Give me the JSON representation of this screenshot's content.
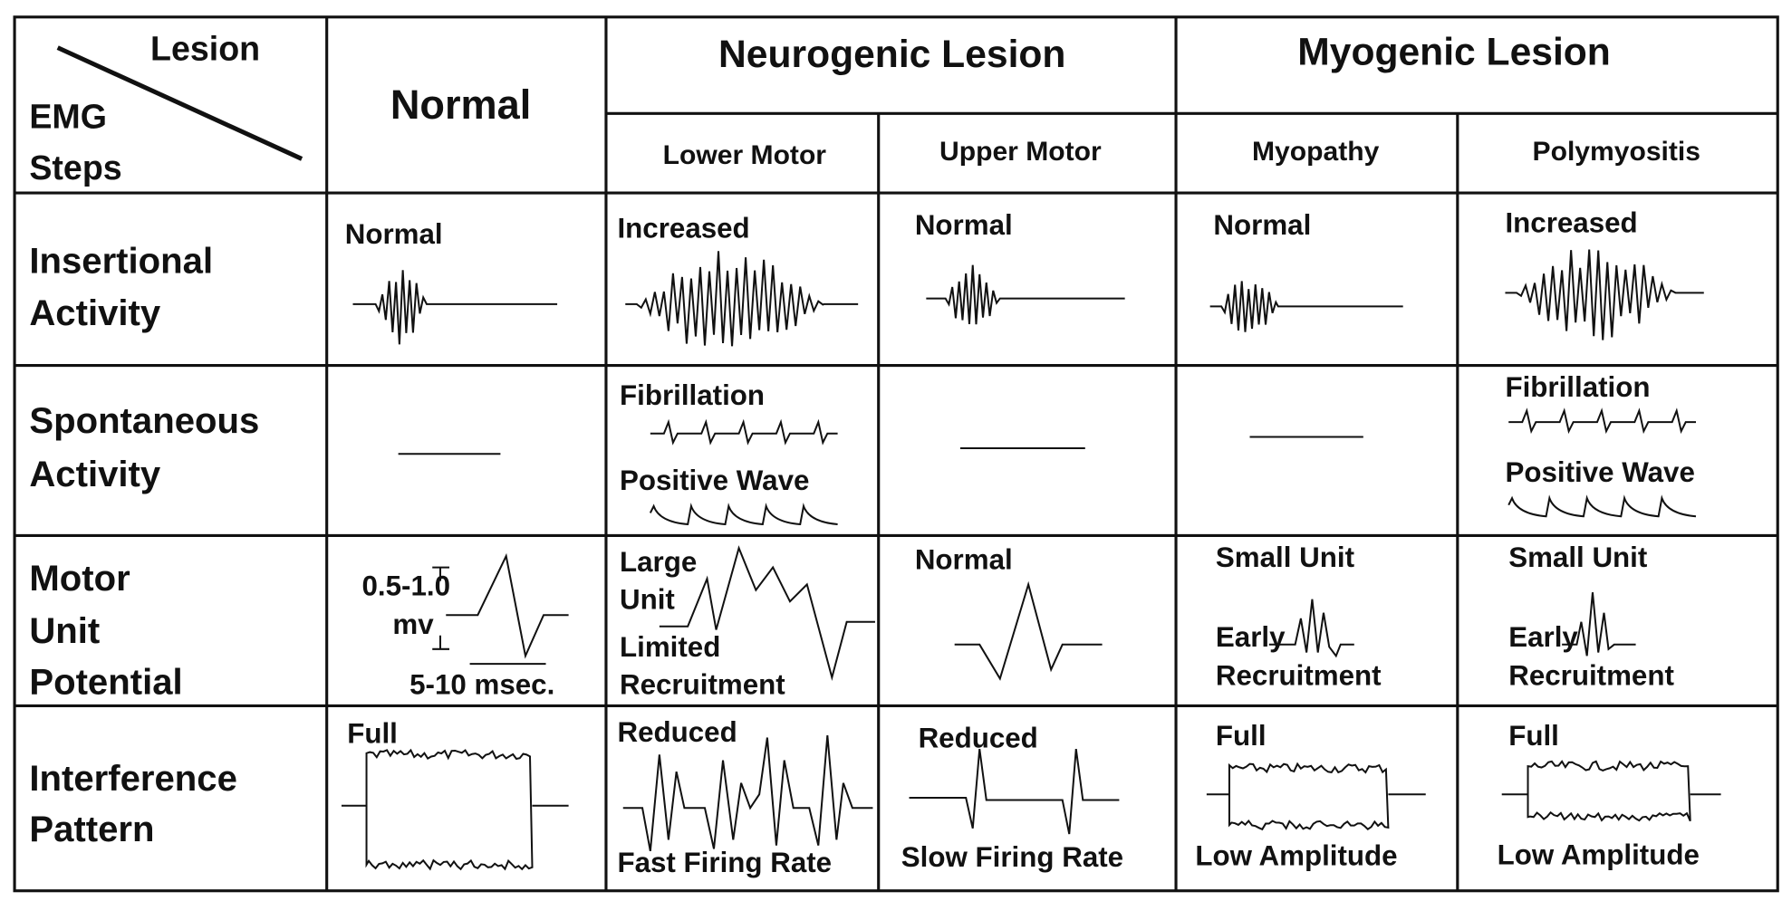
{
  "header": {
    "corner": {
      "lesion": "Lesion",
      "steps": [
        "EMG",
        "Steps"
      ]
    },
    "normal": "Normal",
    "groups": [
      {
        "title": "Neurogenic Lesion",
        "subs": [
          "Lower Motor",
          "Upper Motor"
        ]
      },
      {
        "title": "Myogenic Lesion",
        "subs": [
          "Myopathy",
          "Polymyositis"
        ]
      }
    ]
  },
  "rows": [
    {
      "label": [
        "Insertional",
        "Activity"
      ],
      "cells": [
        [
          "Normal"
        ],
        [
          "Increased"
        ],
        [
          "Normal"
        ],
        [
          "Normal"
        ],
        [
          "Increased"
        ]
      ]
    },
    {
      "label": [
        "Spontaneous",
        "Activity"
      ],
      "cells": [
        [],
        [
          "Fibrillation",
          "Positive Wave"
        ],
        [],
        [],
        [
          "Fibrillation",
          "Positive Wave"
        ]
      ]
    },
    {
      "label": [
        "Motor",
        "Unit",
        "Potential"
      ],
      "cells": [
        [
          "0.5-1.0",
          "mv",
          "5-10 msec."
        ],
        [
          "Large",
          "Unit",
          "Limited",
          "Recruitment"
        ],
        [
          "Normal"
        ],
        [
          "Small Unit",
          "Early",
          "Recruitment"
        ],
        [
          "Small Unit",
          "Early",
          "Recruitment"
        ]
      ]
    },
    {
      "label": [
        "Interference",
        "Pattern"
      ],
      "cells": [
        [
          "Full"
        ],
        [
          "Reduced",
          "Fast Firing Rate"
        ],
        [
          "Reduced",
          "Slow Firing Rate"
        ],
        [
          "Full",
          "Low Amplitude"
        ],
        [
          "Full",
          "Low Amplitude"
        ]
      ]
    }
  ]
}
